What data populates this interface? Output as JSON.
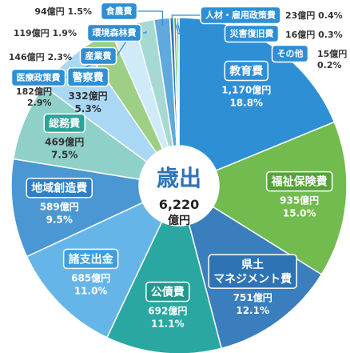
{
  "chart_data": {
    "type": "pie",
    "variant": "donut",
    "title": "歳出",
    "total_value": "6,220",
    "total_unit": "億円",
    "value_unit": "億円",
    "slices": [
      {
        "name": "教育費",
        "value": 1170,
        "value_text": "1,170億円",
        "percent": 18.8,
        "percent_text": "18.8%",
        "color": "#2e8fd5",
        "label_color": "#2e8fd5",
        "value_color": "#ffffff"
      },
      {
        "name": "福祉保険費",
        "value": 935,
        "value_text": "935億円",
        "percent": 15.0,
        "percent_text": "15.0%",
        "color": "#72bb4e",
        "label_color": "#55a33a",
        "value_color": "#ffffff"
      },
      {
        "name": "県土マネジメント費",
        "value": 751,
        "value_text": "751億円",
        "percent": 12.1,
        "percent_text": "12.1%",
        "color": "#3a7ebd",
        "label_color": "#2e74b5",
        "value_color": "#ffffff"
      },
      {
        "name": "公債費",
        "value": 692,
        "value_text": "692億円",
        "percent": 11.1,
        "percent_text": "11.1%",
        "color": "#2aa7a0",
        "label_color": "#23978f",
        "value_color": "#ffffff"
      },
      {
        "name": "諸支出金",
        "value": 685,
        "value_text": "685億円",
        "percent": 11.0,
        "percent_text": "11.0%",
        "color": "#66b5e8",
        "label_color": "#3f9fde",
        "value_color": "#ffffff"
      },
      {
        "name": "地域創造費",
        "value": 589,
        "value_text": "589億円",
        "percent": 9.5,
        "percent_text": "9.5%",
        "color": "#4a97d3",
        "label_color": "#2e7fc4",
        "value_color": "#ffffff"
      },
      {
        "name": "総務費",
        "value": 469,
        "value_text": "469億円",
        "percent": 7.5,
        "percent_text": "7.5%",
        "color": "#8fd0c9",
        "label_color": "#2aa39b",
        "value_color": "#333333"
      },
      {
        "name": "警察費",
        "value": 332,
        "value_text": "332億円",
        "percent": 5.3,
        "percent_text": "5.3%",
        "color": "#a9d8f4",
        "label_color": "#2e8fd5",
        "value_color": "#333333"
      },
      {
        "name": "医療政策費",
        "value": 182,
        "value_text": "182億円",
        "percent": 2.9,
        "percent_text": "2.9%",
        "color": "#9dcf84",
        "label_color": "#2e8fd5",
        "value_color": "#333333"
      },
      {
        "name": "産業費",
        "value": 146,
        "value_text": "146億円",
        "percent": 2.3,
        "percent_text": "2.3%",
        "color": "#cfeaf8",
        "label_color": "#2e8fd5",
        "value_color": "#333333"
      },
      {
        "name": "環境森林費",
        "value": 119,
        "value_text": "119億円",
        "percent": 1.9,
        "percent_text": "1.9%",
        "color": "#a6d9d4",
        "label_color": "#2e8fd5",
        "value_color": "#333333"
      },
      {
        "name": "食農費",
        "value": 94,
        "value_text": "94億円",
        "percent": 1.5,
        "percent_text": "1.5%",
        "color": "#5fa9dc",
        "label_color": "#2e8fd5",
        "value_color": "#333333"
      },
      {
        "name": "人材・雇用政策費",
        "value": 23,
        "value_text": "23億円",
        "percent": 0.4,
        "percent_text": "0.4%",
        "color": "#2a78b8",
        "label_color": "#2e8fd5",
        "value_color": "#333333"
      },
      {
        "name": "災害復旧費",
        "value": 16,
        "value_text": "16億円",
        "percent": 0.3,
        "percent_text": "0.3%",
        "color": "#4cae4c",
        "label_color": "#2e8fd5",
        "value_color": "#333333"
      },
      {
        "name": "その他",
        "value": 15,
        "value_text": "15億円",
        "percent": 0.2,
        "percent_text": "0.2%",
        "color": "#6fc0e6",
        "label_color": "#2e8fd5",
        "value_color": "#333333"
      }
    ]
  }
}
